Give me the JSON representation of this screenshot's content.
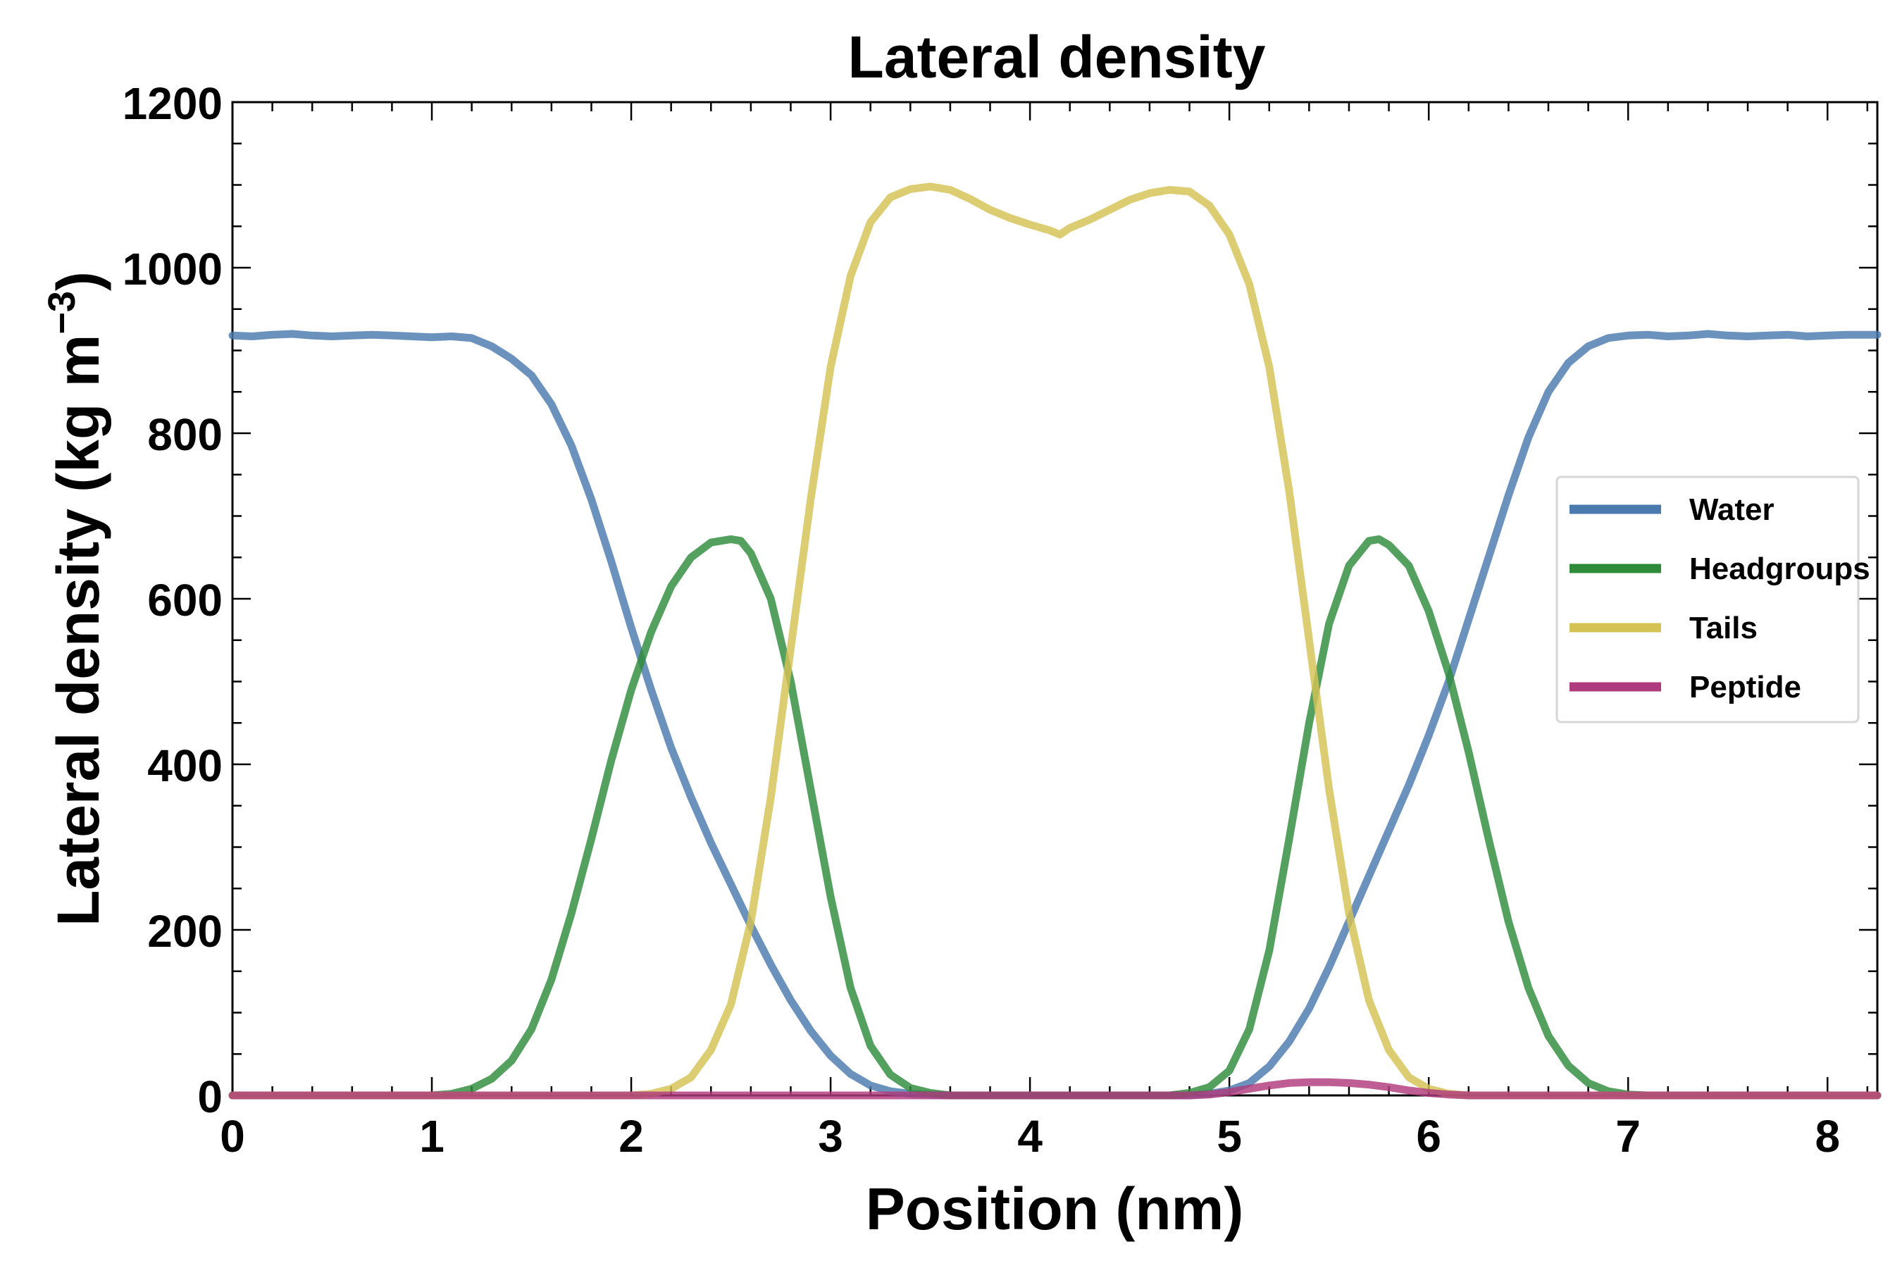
{
  "chart_data": {
    "type": "line",
    "title": "Lateral density",
    "xlabel": "Position (nm)",
    "ylabel": "Lateral density (kg m",
    "ylabel_superscript": "−3",
    "ylabel_close": ")",
    "xlim": [
      0,
      8.25
    ],
    "ylim": [
      0,
      1200
    ],
    "xticks": [
      0,
      1,
      2,
      3,
      4,
      5,
      6,
      7,
      8
    ],
    "xtick_labels": [
      "0",
      "1",
      "2",
      "3",
      "4",
      "5",
      "6",
      "7",
      "8"
    ],
    "yticks": [
      0,
      200,
      400,
      600,
      800,
      1000,
      1200
    ],
    "ytick_labels": [
      "0",
      "200",
      "400",
      "600",
      "800",
      "1000",
      "1200"
    ],
    "legend_position": "center-right",
    "series": [
      {
        "name": "Water",
        "color": "#4a7aad",
        "points": [
          [
            0,
            918
          ],
          [
            0.1,
            917
          ],
          [
            0.2,
            919
          ],
          [
            0.3,
            920
          ],
          [
            0.4,
            918
          ],
          [
            0.5,
            917
          ],
          [
            0.6,
            918
          ],
          [
            0.7,
            919
          ],
          [
            0.8,
            918
          ],
          [
            0.9,
            917
          ],
          [
            1.0,
            916
          ],
          [
            1.1,
            917
          ],
          [
            1.2,
            915
          ],
          [
            1.3,
            905
          ],
          [
            1.4,
            890
          ],
          [
            1.5,
            870
          ],
          [
            1.6,
            835
          ],
          [
            1.7,
            785
          ],
          [
            1.8,
            720
          ],
          [
            1.9,
            645
          ],
          [
            2.0,
            565
          ],
          [
            2.1,
            490
          ],
          [
            2.2,
            420
          ],
          [
            2.3,
            360
          ],
          [
            2.4,
            305
          ],
          [
            2.5,
            255
          ],
          [
            2.6,
            205
          ],
          [
            2.7,
            158
          ],
          [
            2.8,
            115
          ],
          [
            2.9,
            78
          ],
          [
            3.0,
            48
          ],
          [
            3.1,
            26
          ],
          [
            3.2,
            12
          ],
          [
            3.3,
            5
          ],
          [
            3.4,
            2
          ],
          [
            3.6,
            0
          ],
          [
            4.8,
            0
          ],
          [
            4.9,
            2
          ],
          [
            5.0,
            6
          ],
          [
            5.1,
            15
          ],
          [
            5.2,
            35
          ],
          [
            5.3,
            65
          ],
          [
            5.4,
            105
          ],
          [
            5.5,
            155
          ],
          [
            5.6,
            210
          ],
          [
            5.7,
            265
          ],
          [
            5.8,
            320
          ],
          [
            5.9,
            375
          ],
          [
            6.0,
            435
          ],
          [
            6.1,
            500
          ],
          [
            6.2,
            575
          ],
          [
            6.3,
            650
          ],
          [
            6.4,
            725
          ],
          [
            6.5,
            795
          ],
          [
            6.6,
            850
          ],
          [
            6.7,
            885
          ],
          [
            6.8,
            905
          ],
          [
            6.9,
            915
          ],
          [
            7.0,
            918
          ],
          [
            7.1,
            919
          ],
          [
            7.2,
            917
          ],
          [
            7.3,
            918
          ],
          [
            7.4,
            920
          ],
          [
            7.5,
            918
          ],
          [
            7.6,
            917
          ],
          [
            7.7,
            918
          ],
          [
            7.8,
            919
          ],
          [
            7.9,
            917
          ],
          [
            8.0,
            918
          ],
          [
            8.1,
            919
          ],
          [
            8.25,
            919
          ]
        ]
      },
      {
        "name": "Headgroups",
        "color": "#2e8b3a",
        "points": [
          [
            0,
            0
          ],
          [
            1.0,
            0
          ],
          [
            1.1,
            2
          ],
          [
            1.2,
            8
          ],
          [
            1.3,
            20
          ],
          [
            1.4,
            42
          ],
          [
            1.5,
            80
          ],
          [
            1.6,
            140
          ],
          [
            1.7,
            220
          ],
          [
            1.8,
            310
          ],
          [
            1.9,
            405
          ],
          [
            2.0,
            490
          ],
          [
            2.1,
            560
          ],
          [
            2.2,
            615
          ],
          [
            2.3,
            650
          ],
          [
            2.4,
            668
          ],
          [
            2.5,
            672
          ],
          [
            2.55,
            670
          ],
          [
            2.6,
            655
          ],
          [
            2.7,
            600
          ],
          [
            2.8,
            500
          ],
          [
            2.9,
            370
          ],
          [
            3.0,
            240
          ],
          [
            3.1,
            130
          ],
          [
            3.2,
            60
          ],
          [
            3.3,
            25
          ],
          [
            3.4,
            9
          ],
          [
            3.5,
            3
          ],
          [
            3.6,
            0
          ],
          [
            4.7,
            0
          ],
          [
            4.8,
            3
          ],
          [
            4.9,
            10
          ],
          [
            5.0,
            30
          ],
          [
            5.1,
            80
          ],
          [
            5.2,
            175
          ],
          [
            5.3,
            310
          ],
          [
            5.4,
            450
          ],
          [
            5.5,
            570
          ],
          [
            5.6,
            640
          ],
          [
            5.7,
            670
          ],
          [
            5.75,
            672
          ],
          [
            5.8,
            665
          ],
          [
            5.9,
            640
          ],
          [
            6.0,
            585
          ],
          [
            6.1,
            510
          ],
          [
            6.2,
            415
          ],
          [
            6.3,
            310
          ],
          [
            6.4,
            210
          ],
          [
            6.5,
            130
          ],
          [
            6.6,
            72
          ],
          [
            6.7,
            36
          ],
          [
            6.8,
            15
          ],
          [
            6.9,
            5
          ],
          [
            7.0,
            1
          ],
          [
            7.1,
            0
          ],
          [
            8.25,
            0
          ]
        ]
      },
      {
        "name": "Tails",
        "color": "#d4c254",
        "points": [
          [
            0,
            0
          ],
          [
            2.0,
            0
          ],
          [
            2.1,
            2
          ],
          [
            2.2,
            8
          ],
          [
            2.3,
            22
          ],
          [
            2.4,
            55
          ],
          [
            2.5,
            110
          ],
          [
            2.6,
            210
          ],
          [
            2.7,
            360
          ],
          [
            2.8,
            540
          ],
          [
            2.9,
            720
          ],
          [
            3.0,
            880
          ],
          [
            3.1,
            990
          ],
          [
            3.2,
            1055
          ],
          [
            3.3,
            1085
          ],
          [
            3.4,
            1095
          ],
          [
            3.5,
            1098
          ],
          [
            3.6,
            1094
          ],
          [
            3.7,
            1083
          ],
          [
            3.8,
            1070
          ],
          [
            3.9,
            1060
          ],
          [
            4.0,
            1052
          ],
          [
            4.1,
            1045
          ],
          [
            4.15,
            1040
          ],
          [
            4.2,
            1048
          ],
          [
            4.3,
            1058
          ],
          [
            4.4,
            1070
          ],
          [
            4.5,
            1082
          ],
          [
            4.6,
            1090
          ],
          [
            4.7,
            1094
          ],
          [
            4.8,
            1092
          ],
          [
            4.9,
            1075
          ],
          [
            5.0,
            1040
          ],
          [
            5.1,
            980
          ],
          [
            5.2,
            880
          ],
          [
            5.3,
            730
          ],
          [
            5.4,
            550
          ],
          [
            5.5,
            370
          ],
          [
            5.6,
            220
          ],
          [
            5.7,
            115
          ],
          [
            5.8,
            55
          ],
          [
            5.9,
            22
          ],
          [
            6.0,
            8
          ],
          [
            6.1,
            2
          ],
          [
            6.2,
            0
          ],
          [
            8.25,
            0
          ]
        ]
      },
      {
        "name": "Peptide",
        "color": "#b03a7e",
        "points": [
          [
            0,
            0
          ],
          [
            4.8,
            0
          ],
          [
            4.9,
            1
          ],
          [
            5.0,
            4
          ],
          [
            5.1,
            8
          ],
          [
            5.2,
            12
          ],
          [
            5.3,
            15
          ],
          [
            5.4,
            16
          ],
          [
            5.5,
            16
          ],
          [
            5.6,
            15
          ],
          [
            5.7,
            13
          ],
          [
            5.8,
            10
          ],
          [
            5.9,
            6
          ],
          [
            6.0,
            3
          ],
          [
            6.1,
            1
          ],
          [
            6.2,
            0
          ],
          [
            8.25,
            0
          ]
        ]
      }
    ]
  }
}
